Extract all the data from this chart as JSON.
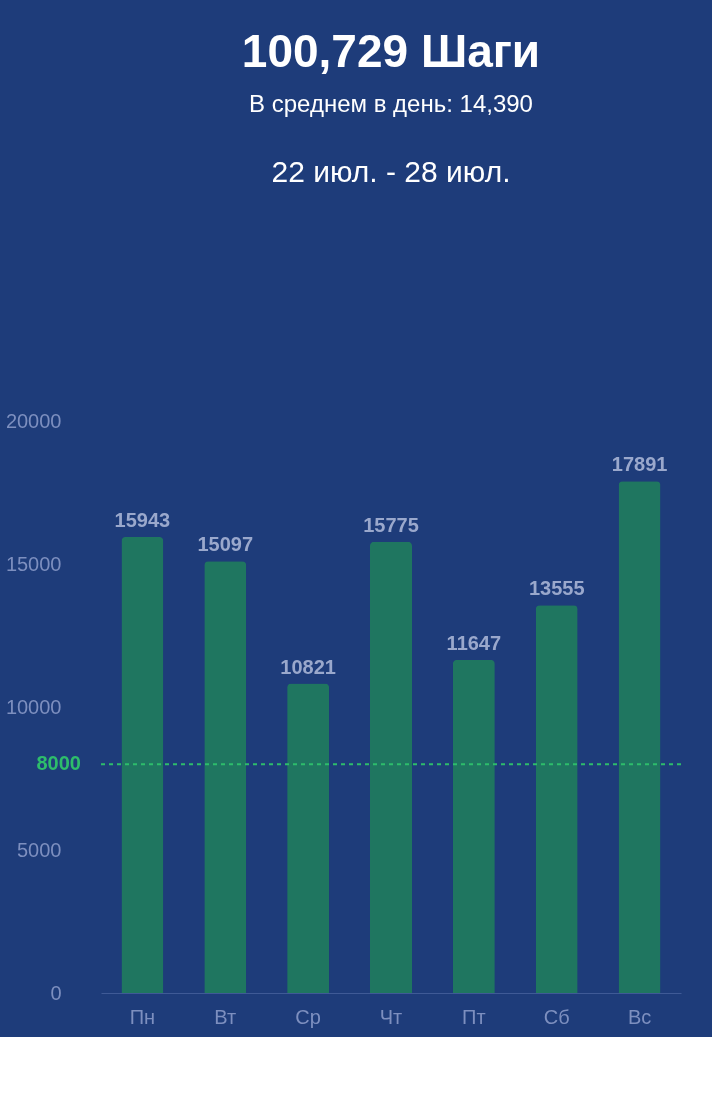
{
  "chart_data": {
    "type": "bar",
    "title": "100,729 Шаги",
    "subtitle": "В среднем в день:  14,390",
    "annotations": [
      "22 июл. - 28 июл."
    ],
    "categories": [
      "Пн",
      "Вт",
      "Ср",
      "Чт",
      "Пт",
      "Сб",
      "Вс"
    ],
    "values": [
      15943,
      15097,
      10821,
      15775,
      11647,
      13555,
      17891
    ],
    "color": "#1f7660",
    "ylim": [
      0,
      20000
    ],
    "yticks": [
      0,
      5000,
      10000,
      15000,
      20000
    ],
    "grid": false,
    "data_labels": true,
    "ref_lines": [
      {
        "axis": "y",
        "value": 8000,
        "label": "8000",
        "color": "#2ebd6b",
        "line_style": "dashed"
      }
    ]
  }
}
